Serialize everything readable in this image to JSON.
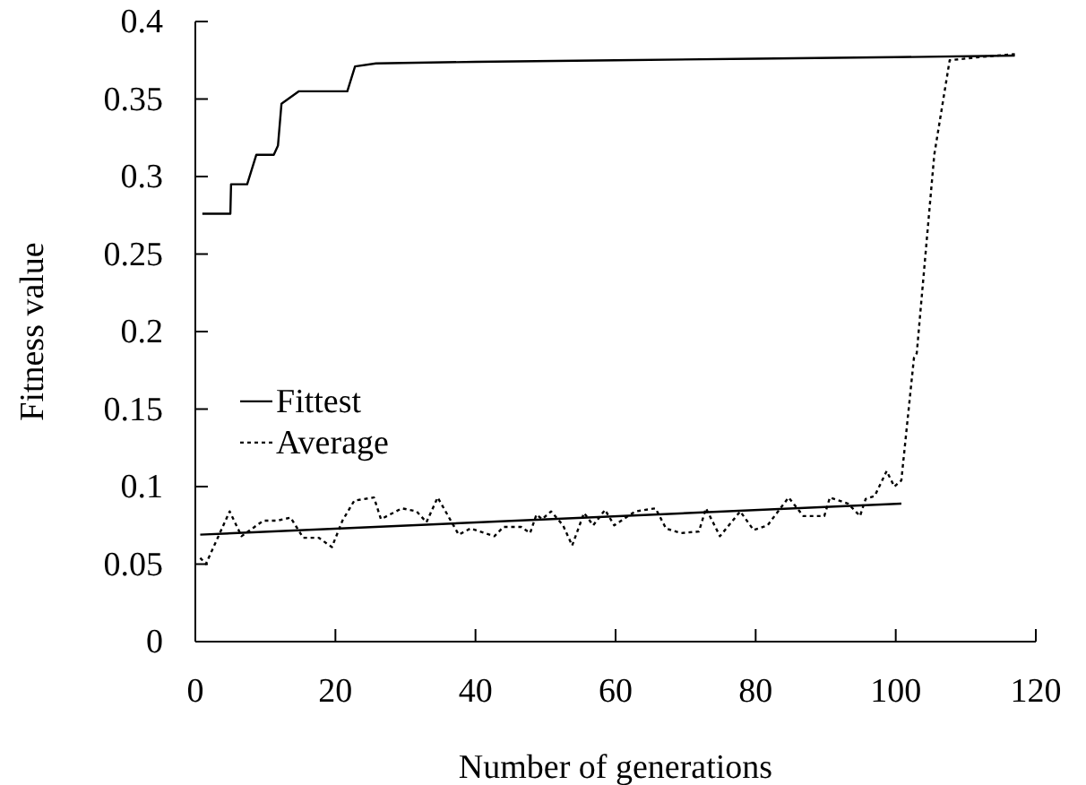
{
  "chart_data": {
    "type": "line",
    "xlabel": "Number of generations",
    "ylabel": "Fitness value",
    "xlim": [
      0,
      120
    ],
    "xticks": [
      0,
      20,
      40,
      60,
      80,
      100,
      120
    ],
    "ylim": [
      0,
      0.4
    ],
    "yticks": [
      0,
      0.05,
      0.1,
      0.15,
      0.2,
      0.25,
      0.3,
      0.35,
      0.4
    ],
    "legend": "left",
    "grid": false,
    "series": [
      {
        "name": "Fittest",
        "color": "#000000",
        "line_style": "solid",
        "x": [
          1,
          5,
          5.1,
          7.4,
          8.7,
          11.2,
          11.8,
          12.3,
          14.8,
          21.7,
          22.8,
          25.8,
          40,
          60,
          80,
          100,
          117
        ],
        "values": [
          0.276,
          0.276,
          0.295,
          0.295,
          0.314,
          0.314,
          0.32,
          0.347,
          0.355,
          0.355,
          0.371,
          0.373,
          0.374,
          0.375,
          0.376,
          0.377,
          0.378
        ]
      },
      {
        "name": "Average",
        "color": "#000000",
        "line_style": "dotted",
        "x": [
          0.7,
          1.5,
          4.9,
          6.6,
          9.7,
          11.6,
          13.6,
          15.4,
          17.6,
          19.5,
          21,
          22.7,
          25.5,
          26.5,
          29.5,
          31.6,
          33,
          34.6,
          37.6,
          39.3,
          42.7,
          44,
          46.5,
          47.8,
          48.7,
          49.5,
          50.8,
          52.5,
          53.8,
          55.5,
          56.8,
          58.5,
          59.8,
          62.8,
          65.7,
          67.2,
          69.3,
          71.9,
          72.9,
          74.9,
          77.8,
          79.7,
          81.7,
          84.7,
          86.8,
          89.8,
          90.6,
          93.2,
          94.9,
          95.7,
          97,
          98.7,
          99.8,
          100.8,
          102.6,
          103,
          105.5,
          107.7,
          111.9,
          117
        ],
        "values": [
          0.054,
          0.05,
          0.084,
          0.068,
          0.078,
          0.078,
          0.08,
          0.067,
          0.067,
          0.061,
          0.078,
          0.091,
          0.093,
          0.079,
          0.086,
          0.084,
          0.077,
          0.093,
          0.069,
          0.073,
          0.068,
          0.074,
          0.074,
          0.07,
          0.082,
          0.079,
          0.084,
          0.075,
          0.062,
          0.083,
          0.075,
          0.085,
          0.075,
          0.084,
          0.086,
          0.073,
          0.07,
          0.071,
          0.086,
          0.068,
          0.084,
          0.072,
          0.075,
          0.093,
          0.081,
          0.081,
          0.093,
          0.089,
          0.081,
          0.092,
          0.094,
          0.11,
          0.1,
          0.104,
          0.183,
          0.186,
          0.314,
          0.375,
          0.377,
          0.379
        ]
      },
      {
        "color": "#000000",
        "line_style": "solid",
        "x": [
          0.7,
          100.8
        ],
        "values": [
          0.069,
          0.089
        ]
      }
    ]
  }
}
